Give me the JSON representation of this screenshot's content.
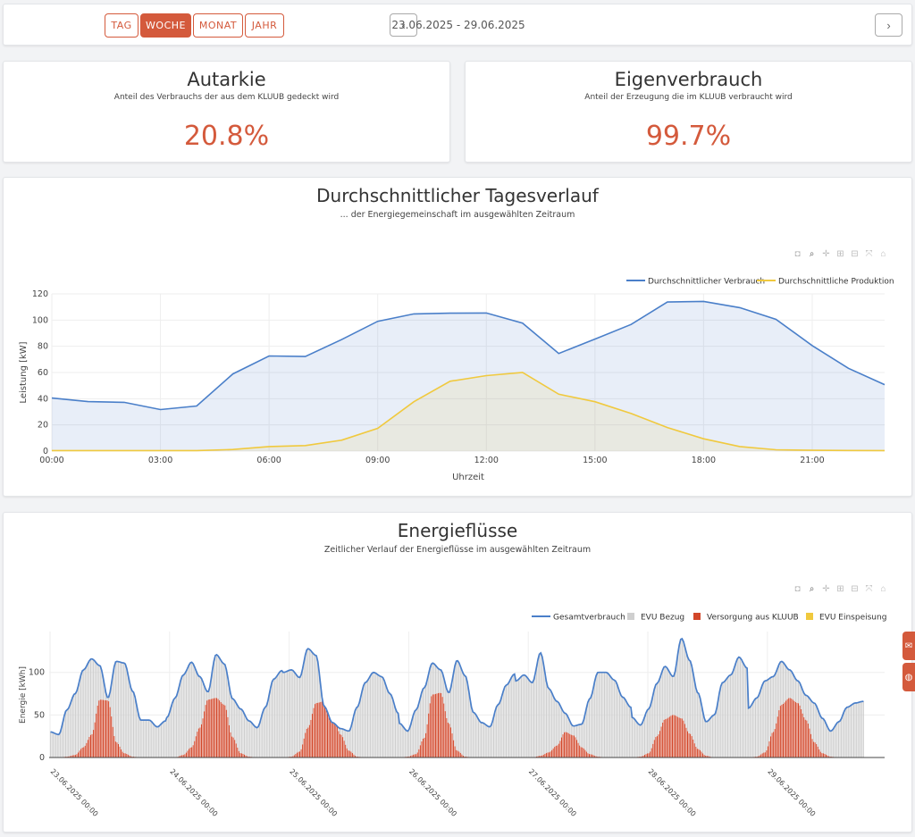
{
  "periods": [
    "TAG",
    "WOCHE",
    "MONAT",
    "JAHR"
  ],
  "active_period": "WOCHE",
  "date_range": "23.06.2025 - 29.06.2025",
  "nav": {
    "prev": "‹",
    "next": "›"
  },
  "kpis": {
    "autarkie": {
      "title": "Autarkie",
      "subtitle": "Anteil des Verbrauchs der aus dem KLUUB gedeckt wird",
      "value": "20.8%"
    },
    "eigenverbrauch": {
      "title": "Eigenverbrauch",
      "subtitle": "Anteil der Erzeugung die im KLUUB verbraucht wird",
      "value": "99.7%"
    }
  },
  "modebar_icons": [
    "camera-icon",
    "zoom-icon",
    "pan-icon",
    "zoom-in-icon",
    "zoom-out-icon",
    "autoscale-icon",
    "reset-axes-icon"
  ],
  "colors": {
    "accent": "#d45a3c",
    "consumption": "#4a7fc9",
    "production": "#f0c93e",
    "grid": "#cfcfcf",
    "supply": "#d2472a"
  },
  "side_tabs": [
    "mail-icon",
    "globe-icon"
  ],
  "chart_data": [
    {
      "type": "area",
      "title": "Durchschnittlicher Tagesverlauf",
      "subtitle": "... der Energiegemeinschaft im ausgewählten Zeitraum",
      "xlabel": "Uhrzeit",
      "ylabel": "Leistung [kW]",
      "ylim": [
        0,
        120
      ],
      "y_ticks": [
        0,
        20,
        40,
        60,
        80,
        100,
        120
      ],
      "x_ticks": [
        "00:00",
        "03:00",
        "06:00",
        "09:00",
        "12:00",
        "15:00",
        "18:00",
        "21:00"
      ],
      "x": [
        0,
        1,
        2,
        3,
        4,
        5,
        6,
        7,
        8,
        9,
        10,
        11,
        12,
        13,
        14,
        15,
        16,
        17,
        18,
        19,
        20,
        21,
        22,
        23
      ],
      "legend_position": "top-right",
      "grid": true,
      "series": [
        {
          "name": "Durchschnittlicher Verbrauch",
          "values": [
            40.5,
            37.8,
            37.2,
            31.7,
            34.4,
            58.9,
            72.6,
            72.2,
            85.1,
            99.1,
            104.7,
            105.3,
            105.4,
            97.7,
            74.5,
            85.5,
            96.7,
            113.8,
            114.3,
            109.5,
            100.6,
            80.5,
            63.2,
            50.7
          ]
        },
        {
          "name": "Durchschnittliche Produktion",
          "values": [
            0.4,
            0.4,
            0.4,
            0.4,
            0.4,
            1.2,
            3.5,
            4.2,
            8.3,
            17.4,
            37.7,
            53.3,
            57.6,
            60.1,
            43.4,
            37.7,
            28.7,
            18.0,
            9.4,
            3.5,
            1.0,
            0.6,
            0.5,
            0.4
          ]
        }
      ]
    },
    {
      "type": "bar",
      "title": "Energieflüsse",
      "subtitle": "Zeitlicher Verlauf der Energieflüsse im ausgewählten Zeitraum",
      "xlabel": "",
      "ylabel": "Energie [kWh]",
      "ylim": [
        0,
        148
      ],
      "y_ticks": [
        0,
        50,
        100
      ],
      "x_ticks": [
        "23.06.2025 00:00",
        "24.06.2025 00:00",
        "25.06.2025 00:00",
        "26.06.2025 00:00",
        "27.06.2025 00:00",
        "28.06.2025 00:00",
        "29.06.2025 00:00"
      ],
      "interval": "2h",
      "legend_position": "top-right",
      "series_names": [
        "Gesamtverbrauch",
        "EVU Bezug",
        "Versorgung aus KLUUB",
        "EVU Einspeisung"
      ],
      "days": [
        {
          "consumption": [
            30,
            27,
            56,
            75,
            103,
            116,
            108,
            70,
            113,
            111,
            78,
            44,
            44,
            36,
            43
          ],
          "kluub": [
            0,
            0,
            1,
            3,
            12,
            27,
            68,
            67,
            18,
            5,
            1,
            0,
            0,
            0,
            0
          ]
        },
        {
          "consumption": [
            47,
            70,
            97,
            112,
            95,
            77,
            121,
            110,
            69,
            57,
            43,
            35,
            59,
            92,
            102
          ],
          "kluub": [
            0,
            0,
            3,
            12,
            35,
            68,
            70,
            62,
            24,
            5,
            1,
            0,
            0,
            0,
            0
          ]
        },
        {
          "consumption": [
            100,
            103,
            94,
            128,
            120,
            60,
            41,
            34,
            31,
            59,
            88,
            100,
            95,
            75,
            52
          ],
          "kluub": [
            0,
            1,
            7,
            35,
            64,
            66,
            52,
            27,
            8,
            1,
            0,
            0,
            0,
            0,
            0
          ]
        },
        {
          "consumption": [
            40,
            31,
            56,
            82,
            111,
            103,
            76,
            114,
            96,
            53,
            41,
            36,
            62,
            85,
            98
          ],
          "kluub": [
            0,
            1,
            4,
            23,
            74,
            76,
            40,
            8,
            1,
            0,
            0,
            0,
            0,
            0,
            0
          ]
        },
        {
          "consumption": [
            90,
            97,
            88,
            123,
            81,
            66,
            52,
            37,
            39,
            69,
            100,
            100,
            91,
            71,
            59
          ],
          "kluub": [
            0,
            0,
            0,
            2,
            6,
            14,
            30,
            26,
            12,
            4,
            1,
            0,
            0,
            0,
            0
          ]
        },
        {
          "consumption": [
            47,
            38,
            57,
            87,
            107,
            95,
            140,
            114,
            76,
            42,
            50,
            88,
            97,
            118,
            105
          ],
          "kluub": [
            0,
            1,
            5,
            25,
            45,
            50,
            46,
            28,
            10,
            2,
            0,
            0,
            0,
            0,
            0
          ]
        },
        {
          "consumption": [
            58,
            70,
            90,
            95,
            113,
            103,
            90,
            73,
            64,
            46,
            31,
            42,
            59,
            64,
            66
          ],
          "kluub": [
            0,
            1,
            6,
            30,
            62,
            70,
            64,
            44,
            18,
            5,
            1,
            0,
            0,
            0,
            0
          ]
        }
      ]
    }
  ]
}
